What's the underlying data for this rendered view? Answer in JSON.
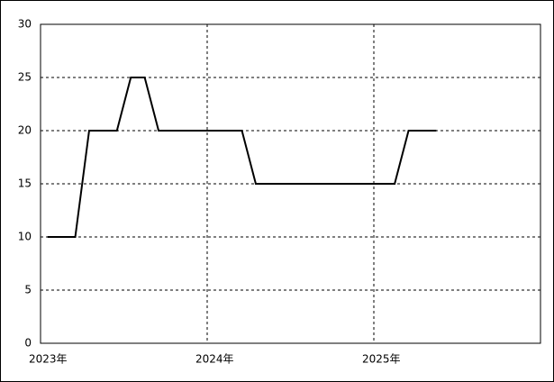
{
  "chart_data": {
    "type": "line",
    "x": [
      "2023-01",
      "2023-02",
      "2023-03",
      "2023-04",
      "2023-05",
      "2023-06",
      "2023-07",
      "2023-08",
      "2023-09",
      "2023-10",
      "2023-11",
      "2023-12",
      "2024-01",
      "2024-02",
      "2024-03",
      "2024-04",
      "2024-05",
      "2024-06",
      "2024-07",
      "2024-08",
      "2024-09",
      "2024-10",
      "2024-11",
      "2024-12",
      "2025-01",
      "2025-02",
      "2025-03",
      "2025-04",
      "2025-05"
    ],
    "series": [
      {
        "color": "#000000",
        "values": [
          10,
          10,
          10,
          20,
          20,
          20,
          25,
          25,
          20,
          20,
          20,
          20,
          20,
          20,
          20,
          15,
          15,
          15,
          15,
          15,
          15,
          15,
          15,
          15,
          15,
          15,
          20,
          20,
          20
        ]
      }
    ],
    "xlim": [
      "2023-01",
      "2026-01"
    ],
    "xticks": [
      {
        "value": "2023-01",
        "label": "2023年"
      },
      {
        "value": "2024-01",
        "label": "2024年"
      },
      {
        "value": "2025-01",
        "label": "2025年"
      }
    ],
    "ylim": [
      0,
      30
    ],
    "yticks": [
      0,
      5,
      10,
      15,
      20,
      25,
      30
    ],
    "grid": true
  }
}
